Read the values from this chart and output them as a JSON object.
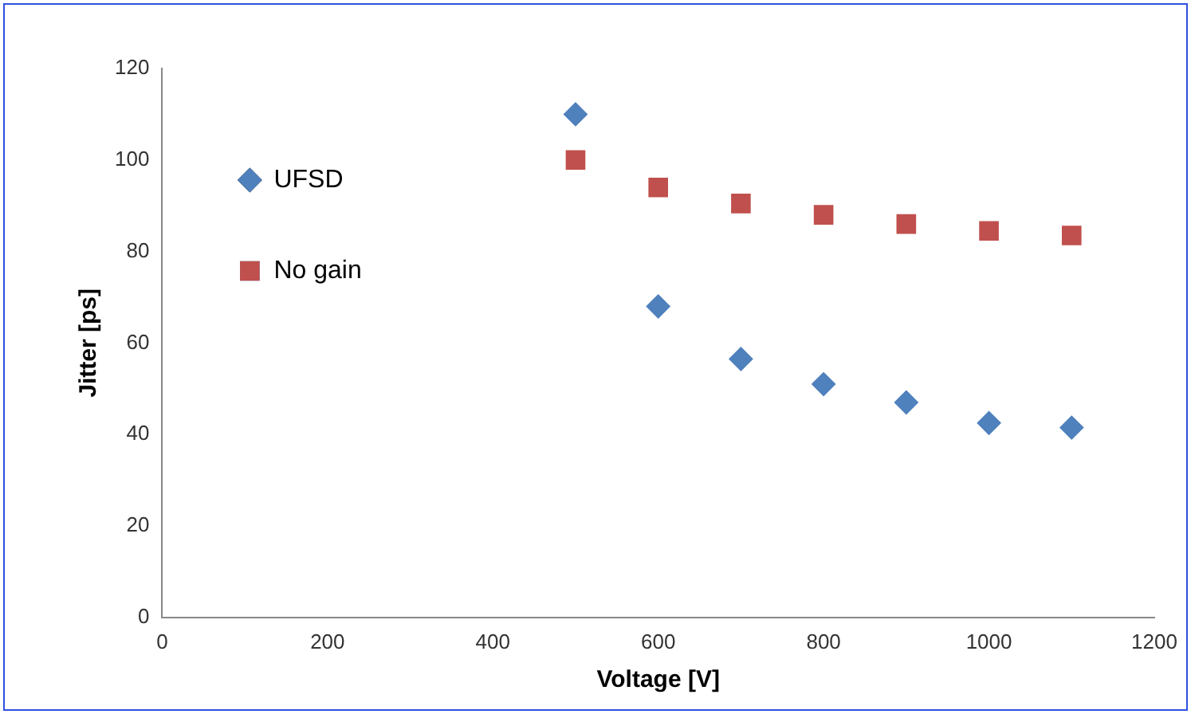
{
  "chart_data": {
    "type": "scatter",
    "xlabel": "Voltage [V]",
    "ylabel": "Jitter [ps]",
    "x": [
      500,
      600,
      700,
      800,
      900,
      1000,
      1100
    ],
    "series": [
      {
        "name": "UFSD",
        "color": "#4f81bd",
        "marker": "diamond",
        "values": [
          110,
          68,
          56.5,
          51,
          47,
          42.5,
          41.5
        ]
      },
      {
        "name": "No gain",
        "color": "#c0504d",
        "marker": "square",
        "values": [
          100,
          94,
          90.5,
          88,
          86,
          84.5,
          83.5
        ]
      }
    ],
    "xlim": [
      0,
      1200
    ],
    "xticks": [
      0,
      200,
      400,
      600,
      800,
      1000,
      1200
    ],
    "ylim": [
      0,
      120
    ],
    "yticks": [
      0,
      20,
      40,
      60,
      80,
      100,
      120
    ],
    "grid": false,
    "legend": "top left"
  }
}
